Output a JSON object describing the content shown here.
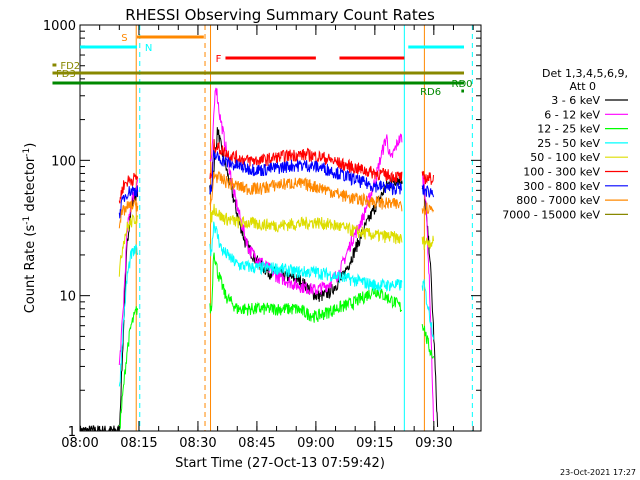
{
  "chart_data": {
    "type": "line",
    "title": "RHESSI Observing Summary Count Rates",
    "xlabel": "Start Time (27-Oct-13 07:59:42)",
    "ylabel_main": "Count Rate (s",
    "ylabel_sup": "-1",
    "ylabel_mid": " detector",
    "ylabel_end": ")",
    "ylog": true,
    "ylim": [
      1,
      1000
    ],
    "yticks": [
      {
        "value": 1,
        "label": "1"
      },
      {
        "value": 10,
        "label": "10"
      },
      {
        "value": 100,
        "label": "100"
      },
      {
        "value": 1000,
        "label": "1000"
      }
    ],
    "xlim": [
      0,
      102
    ],
    "xticks": [
      {
        "value": 0,
        "label": "08:00"
      },
      {
        "value": 15,
        "label": "08:15"
      },
      {
        "value": 30,
        "label": "08:30"
      },
      {
        "value": 45,
        "label": "08:45"
      },
      {
        "value": 60,
        "label": "09:00"
      },
      {
        "value": 75,
        "label": "09:15"
      },
      {
        "value": 90,
        "label": "09:30"
      }
    ],
    "legend_header": [
      "Det 1,3,4,5,6,9,",
      "Att 0"
    ],
    "timestamp": "23-Oct-2021 17:27",
    "gaps": [
      [
        14.7,
        33
      ],
      [
        82,
        87
      ]
    ],
    "series": [
      {
        "name": "3 - 6 keV",
        "color": "#000000",
        "points": [
          [
            0,
            1
          ],
          [
            10,
            1
          ],
          [
            11,
            5
          ],
          [
            12,
            25
          ],
          [
            13,
            45
          ],
          [
            14,
            55
          ],
          [
            14.5,
            60
          ],
          [
            33.5,
            60
          ],
          [
            35,
            170
          ],
          [
            36,
            120
          ],
          [
            38,
            70
          ],
          [
            40,
            40
          ],
          [
            42,
            25
          ],
          [
            45,
            18
          ],
          [
            48,
            15
          ],
          [
            52,
            14
          ],
          [
            56,
            13
          ],
          [
            60,
            10
          ],
          [
            62,
            10
          ],
          [
            64,
            11
          ],
          [
            67,
            14
          ],
          [
            70,
            22
          ],
          [
            72,
            30
          ],
          [
            75,
            45
          ],
          [
            78,
            65
          ],
          [
            80,
            72
          ],
          [
            82,
            72
          ],
          [
            87.5,
            60
          ],
          [
            88,
            40
          ],
          [
            89,
            20
          ],
          [
            90,
            5
          ],
          [
            91,
            1
          ]
        ]
      },
      {
        "name": "6 - 12 keV",
        "color": "#ff00ff",
        "points": [
          [
            10,
            3
          ],
          [
            11,
            8
          ],
          [
            12,
            30
          ],
          [
            13,
            50
          ],
          [
            14,
            60
          ],
          [
            14.5,
            70
          ],
          [
            33.5,
            100
          ],
          [
            34.5,
            380
          ],
          [
            35.5,
            220
          ],
          [
            37,
            130
          ],
          [
            39,
            60
          ],
          [
            41,
            35
          ],
          [
            43,
            22
          ],
          [
            46,
            18
          ],
          [
            50,
            14
          ],
          [
            55,
            12
          ],
          [
            60,
            11
          ],
          [
            63,
            12
          ],
          [
            66,
            15
          ],
          [
            69,
            25
          ],
          [
            72,
            38
          ],
          [
            75,
            70
          ],
          [
            77,
            120
          ],
          [
            78,
            150
          ],
          [
            79,
            100
          ],
          [
            81,
            140
          ],
          [
            82,
            150
          ],
          [
            87.5,
            70
          ],
          [
            88,
            50
          ],
          [
            89,
            10
          ],
          [
            90,
            1
          ]
        ]
      },
      {
        "name": "12 - 25 keV",
        "color": "#00ff00",
        "points": [
          [
            10,
            1
          ],
          [
            11,
            2
          ],
          [
            12,
            4
          ],
          [
            13,
            6
          ],
          [
            14.5,
            8
          ],
          [
            33.5,
            8
          ],
          [
            34,
            22
          ],
          [
            35,
            15
          ],
          [
            37,
            10
          ],
          [
            40,
            8
          ],
          [
            45,
            8
          ],
          [
            50,
            8
          ],
          [
            55,
            8
          ],
          [
            60,
            7
          ],
          [
            65,
            8
          ],
          [
            70,
            9
          ],
          [
            75,
            11
          ],
          [
            80,
            9
          ],
          [
            82,
            8
          ],
          [
            87.5,
            6
          ],
          [
            88,
            5
          ],
          [
            89,
            4
          ],
          [
            90,
            3.5
          ]
        ]
      },
      {
        "name": "25 - 50 keV",
        "color": "#00ffff",
        "points": [
          [
            10,
            2
          ],
          [
            11,
            6
          ],
          [
            12,
            14
          ],
          [
            13,
            20
          ],
          [
            14.5,
            22
          ],
          [
            33.5,
            22
          ],
          [
            34,
            35
          ],
          [
            36,
            22
          ],
          [
            40,
            17
          ],
          [
            45,
            16
          ],
          [
            50,
            16
          ],
          [
            55,
            15
          ],
          [
            60,
            15
          ],
          [
            65,
            14
          ],
          [
            70,
            13
          ],
          [
            75,
            12
          ],
          [
            80,
            12
          ],
          [
            82,
            12
          ],
          [
            87.5,
            12
          ],
          [
            88,
            10
          ],
          [
            89,
            7
          ],
          [
            90,
            5
          ]
        ]
      },
      {
        "name": "50 - 100 keV",
        "color": "#dddd00",
        "points": [
          [
            10,
            15
          ],
          [
            11,
            25
          ],
          [
            12,
            32
          ],
          [
            13,
            35
          ],
          [
            14.5,
            38
          ],
          [
            33.5,
            38
          ],
          [
            34,
            45
          ],
          [
            36,
            38
          ],
          [
            40,
            35
          ],
          [
            45,
            34
          ],
          [
            50,
            33
          ],
          [
            55,
            34
          ],
          [
            60,
            35
          ],
          [
            65,
            33
          ],
          [
            70,
            30
          ],
          [
            75,
            28
          ],
          [
            80,
            27
          ],
          [
            82,
            26
          ],
          [
            87.5,
            25
          ],
          [
            90,
            25
          ]
        ]
      },
      {
        "name": "100 - 300 keV",
        "color": "#ff0000",
        "points": [
          [
            10,
            50
          ],
          [
            11,
            65
          ],
          [
            12,
            70
          ],
          [
            13,
            72
          ],
          [
            14.5,
            75
          ],
          [
            33.5,
            75
          ],
          [
            34,
            130
          ],
          [
            35,
            125
          ],
          [
            38,
            110
          ],
          [
            42,
            100
          ],
          [
            46,
            100
          ],
          [
            50,
            105
          ],
          [
            54,
            110
          ],
          [
            58,
            110
          ],
          [
            62,
            105
          ],
          [
            66,
            95
          ],
          [
            70,
            88
          ],
          [
            74,
            82
          ],
          [
            78,
            78
          ],
          [
            82,
            75
          ],
          [
            87.5,
            75
          ],
          [
            90,
            73
          ]
        ]
      },
      {
        "name": "300 - 800 keV",
        "color": "#0000ff",
        "points": [
          [
            10,
            40
          ],
          [
            11,
            52
          ],
          [
            12,
            58
          ],
          [
            13,
            60
          ],
          [
            14.5,
            60
          ],
          [
            33.5,
            60
          ],
          [
            34,
            110
          ],
          [
            35,
            105
          ],
          [
            38,
            95
          ],
          [
            42,
            88
          ],
          [
            46,
            85
          ],
          [
            50,
            88
          ],
          [
            54,
            92
          ],
          [
            58,
            92
          ],
          [
            62,
            88
          ],
          [
            66,
            80
          ],
          [
            70,
            72
          ],
          [
            74,
            66
          ],
          [
            78,
            63
          ],
          [
            82,
            62
          ],
          [
            87.5,
            60
          ],
          [
            90,
            58
          ]
        ]
      },
      {
        "name": "800 - 7000 keV",
        "color": "#ff8800",
        "points": [
          [
            10,
            35
          ],
          [
            11,
            42
          ],
          [
            12,
            45
          ],
          [
            13,
            46
          ],
          [
            14.5,
            47
          ],
          [
            33.5,
            47
          ],
          [
            34,
            80
          ],
          [
            35,
            75
          ],
          [
            38,
            68
          ],
          [
            42,
            62
          ],
          [
            46,
            62
          ],
          [
            50,
            66
          ],
          [
            54,
            68
          ],
          [
            58,
            66
          ],
          [
            62,
            62
          ],
          [
            66,
            56
          ],
          [
            70,
            52
          ],
          [
            74,
            50
          ],
          [
            78,
            48
          ],
          [
            82,
            47
          ],
          [
            87.5,
            45
          ],
          [
            90,
            44
          ]
        ]
      },
      {
        "name": "7000 - 15000 keV",
        "color": "#888800",
        "points": []
      }
    ],
    "flag_bars": [
      {
        "label": "S",
        "color": "#ff8800",
        "y": 37,
        "segments": [
          [
            14.5,
            31.5
          ]
        ],
        "label_x": 10.5
      },
      {
        "label": "N",
        "color": "#00ffff",
        "y": 47,
        "segments": [
          [
            0,
            14.5
          ],
          [
            83.5,
            102
          ]
        ],
        "label_x": 16.5
      },
      {
        "label": "F",
        "color": "#ff0000",
        "y": 58,
        "segments": [
          [
            37,
            60
          ],
          [
            66,
            82.5
          ]
        ],
        "label_x": 34.5
      },
      {
        "label": "FD2",
        "color": "#888800",
        "y": 65,
        "segments": [
          [
            -7,
            -6
          ]
        ],
        "label_x": -5
      },
      {
        "label": "FD3",
        "color": "#888800",
        "y": 73,
        "segments": [
          [
            -7,
            102
          ]
        ],
        "label_x": -22
      },
      {
        "label": "RD0",
        "color": "#008800",
        "y": 83,
        "segments": [
          [
            -7,
            102
          ]
        ],
        "label_x": 94.5
      },
      {
        "label": "RD6",
        "color": "#008800",
        "y": 91,
        "segments": [
          [
            97,
            98
          ]
        ],
        "label_x": 86.5
      }
    ],
    "vlines": [
      {
        "x": 0,
        "color": "#00ffff",
        "dash": false
      },
      {
        "x": 14.3,
        "color": "#ff8800",
        "dash": false
      },
      {
        "x": 15.2,
        "color": "#00ffff",
        "dash": true
      },
      {
        "x": 31.8,
        "color": "#ff8800",
        "dash": true
      },
      {
        "x": 33.2,
        "color": "#ff8800",
        "dash": false
      },
      {
        "x": 82.5,
        "color": "#00ffff",
        "dash": false
      },
      {
        "x": 87.6,
        "color": "#ff8800",
        "dash": false
      },
      {
        "x": 99.8,
        "color": "#00ffff",
        "dash": true
      }
    ]
  }
}
